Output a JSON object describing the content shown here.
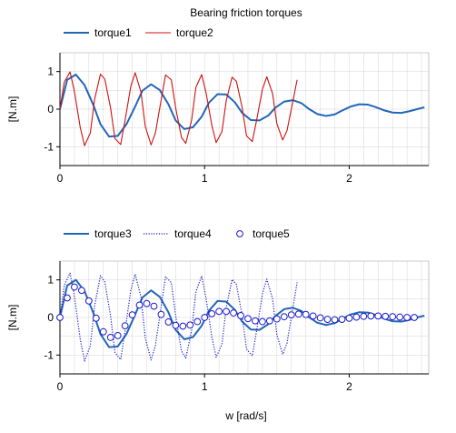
{
  "figure": {
    "title": "Bearing friction torques",
    "xlabel": "w [rad/s]",
    "colors": {
      "series_blue": "#2266b8",
      "series_red": "#cc1111",
      "series_navy": "#1a1acc",
      "grid": "#d4d4d4",
      "axis": "#000000",
      "frame": "#a0a0a0"
    }
  },
  "chart_data": [
    {
      "type": "line",
      "title": "Bearing friction torques",
      "xlabel": "",
      "ylabel": "[N.m]",
      "xlim": [
        0,
        2.55
      ],
      "ylim": [
        -1.5,
        1.5
      ],
      "x_ticks": [
        "0",
        "1",
        "2"
      ],
      "y_ticks": [
        "1",
        "0",
        "-1"
      ],
      "grid": true,
      "legend": "top-left",
      "series": [
        {
          "name": "torque1",
          "style": "solid",
          "color": "#2266b8",
          "x": [
            0.0,
            0.05,
            0.11,
            0.17,
            0.23,
            0.28,
            0.34,
            0.4,
            0.46,
            0.52,
            0.57,
            0.63,
            0.69,
            0.75,
            0.8,
            0.86,
            0.92,
            0.98,
            1.03,
            1.09,
            1.15,
            1.21,
            1.26,
            1.32,
            1.38,
            1.44,
            1.49,
            1.55,
            1.61,
            1.67,
            1.72,
            1.78,
            1.84,
            1.9,
            1.95,
            2.01,
            2.07,
            2.13,
            2.18,
            2.24,
            2.3,
            2.36,
            2.41,
            2.47,
            2.52
          ],
          "y": [
            0.0,
            0.78,
            0.92,
            0.64,
            0.12,
            -0.4,
            -0.73,
            -0.71,
            -0.4,
            0.07,
            0.49,
            0.66,
            0.51,
            0.13,
            -0.3,
            -0.53,
            -0.48,
            -0.2,
            0.17,
            0.4,
            0.39,
            0.18,
            -0.1,
            -0.29,
            -0.3,
            -0.17,
            0.04,
            0.2,
            0.24,
            0.16,
            0.01,
            -0.13,
            -0.18,
            -0.14,
            -0.04,
            0.07,
            0.13,
            0.12,
            0.06,
            -0.03,
            -0.09,
            -0.1,
            -0.06,
            0.0,
            0.05
          ]
        },
        {
          "name": "torque2",
          "style": "solid",
          "color": "#cc1111",
          "x": [
            0.0,
            0.03,
            0.07,
            0.1,
            0.14,
            0.17,
            0.21,
            0.24,
            0.28,
            0.31,
            0.35,
            0.38,
            0.42,
            0.45,
            0.49,
            0.52,
            0.56,
            0.59,
            0.63,
            0.66,
            0.7,
            0.73,
            0.77,
            0.8,
            0.84,
            0.87,
            0.91,
            0.94,
            0.98,
            1.01,
            1.05,
            1.08,
            1.12,
            1.15,
            1.19,
            1.22,
            1.26,
            1.29,
            1.33,
            1.36,
            1.4,
            1.43,
            1.47,
            1.5,
            1.54,
            1.57,
            1.61,
            1.64
          ],
          "y": [
            0.0,
            0.72,
            0.99,
            0.47,
            -0.48,
            -0.97,
            -0.63,
            0.27,
            0.93,
            0.8,
            0.03,
            -0.78,
            -0.94,
            -0.3,
            0.61,
            0.97,
            0.46,
            -0.46,
            -0.95,
            -0.63,
            0.25,
            0.91,
            0.78,
            0.04,
            -0.75,
            -0.91,
            -0.3,
            0.58,
            0.92,
            0.44,
            -0.43,
            -0.89,
            -0.6,
            0.23,
            0.85,
            0.74,
            0.04,
            -0.71,
            -0.86,
            -0.29,
            0.53,
            0.86,
            0.42,
            -0.39,
            -0.82,
            -0.57,
            0.2,
            0.78
          ]
        }
      ]
    },
    {
      "type": "line",
      "title": "",
      "xlabel": "w [rad/s]",
      "ylabel": "[N.m]",
      "xlim": [
        0,
        2.55
      ],
      "ylim": [
        -1.5,
        1.5
      ],
      "x_ticks": [
        "0",
        "1",
        "2"
      ],
      "y_ticks": [
        "1",
        "0",
        "-1"
      ],
      "grid": true,
      "legend": "top-left",
      "series": [
        {
          "name": "torque3",
          "style": "solid",
          "color": "#2266b8",
          "x": [
            0.0,
            0.05,
            0.11,
            0.17,
            0.23,
            0.28,
            0.34,
            0.4,
            0.46,
            0.52,
            0.57,
            0.63,
            0.69,
            0.75,
            0.8,
            0.86,
            0.92,
            0.98,
            1.03,
            1.09,
            1.15,
            1.21,
            1.26,
            1.32,
            1.38,
            1.44,
            1.49,
            1.55,
            1.61,
            1.67,
            1.72,
            1.78,
            1.84,
            1.9,
            1.95,
            2.01,
            2.07,
            2.13,
            2.18,
            2.24,
            2.3,
            2.36,
            2.41,
            2.47,
            2.52
          ],
          "y": [
            0.0,
            0.85,
            1.0,
            0.7,
            0.13,
            -0.44,
            -0.79,
            -0.77,
            -0.44,
            0.08,
            0.53,
            0.72,
            0.55,
            0.14,
            -0.33,
            -0.58,
            -0.52,
            -0.22,
            0.18,
            0.44,
            0.42,
            0.2,
            -0.11,
            -0.32,
            -0.33,
            -0.18,
            0.04,
            0.22,
            0.26,
            0.17,
            0.01,
            -0.14,
            -0.2,
            -0.15,
            -0.04,
            0.08,
            0.14,
            0.13,
            0.07,
            -0.03,
            -0.1,
            -0.11,
            -0.07,
            0.0,
            0.05
          ]
        },
        {
          "name": "torque4",
          "style": "dotted",
          "color": "#1a1acc",
          "x": [
            0.0,
            0.03,
            0.07,
            0.1,
            0.14,
            0.17,
            0.21,
            0.24,
            0.28,
            0.31,
            0.35,
            0.38,
            0.42,
            0.45,
            0.49,
            0.52,
            0.56,
            0.59,
            0.63,
            0.66,
            0.7,
            0.73,
            0.77,
            0.8,
            0.84,
            0.87,
            0.91,
            0.94,
            0.98,
            1.01,
            1.05,
            1.08,
            1.12,
            1.15,
            1.19,
            1.22,
            1.26,
            1.29,
            1.33,
            1.36,
            1.4,
            1.43,
            1.47,
            1.5,
            1.54,
            1.57,
            1.61,
            1.64
          ],
          "y": [
            0.0,
            0.86,
            1.18,
            0.56,
            -0.57,
            -1.16,
            -0.75,
            0.32,
            1.11,
            0.95,
            0.04,
            -0.93,
            -1.12,
            -0.36,
            0.73,
            1.15,
            0.55,
            -0.55,
            -1.13,
            -0.75,
            0.3,
            1.08,
            0.93,
            0.05,
            -0.89,
            -1.08,
            -0.36,
            0.69,
            1.1,
            0.52,
            -0.51,
            -1.06,
            -0.71,
            0.27,
            1.01,
            0.88,
            0.05,
            -0.84,
            -1.02,
            -0.35,
            0.63,
            1.02,
            0.5,
            -0.46,
            -0.98,
            -0.68,
            0.24,
            0.93
          ]
        },
        {
          "name": "torque5",
          "style": "markers",
          "color": "#1a1acc",
          "x": [
            0.0,
            0.05,
            0.1,
            0.15,
            0.2,
            0.25,
            0.3,
            0.35,
            0.4,
            0.45,
            0.5,
            0.55,
            0.6,
            0.65,
            0.7,
            0.75,
            0.8,
            0.85,
            0.9,
            0.95,
            1.0,
            1.05,
            1.1,
            1.15,
            1.2,
            1.25,
            1.3,
            1.35,
            1.4,
            1.45,
            1.5,
            1.55,
            1.6,
            1.65,
            1.7,
            1.75,
            1.8,
            1.85,
            1.9,
            1.95,
            2.0,
            2.05,
            2.1,
            2.15,
            2.2,
            2.25,
            2.3,
            2.35,
            2.4,
            2.45
          ],
          "y": [
            0.0,
            0.52,
            0.81,
            0.72,
            0.44,
            -0.02,
            -0.38,
            -0.53,
            -0.48,
            -0.22,
            0.07,
            0.33,
            0.37,
            0.3,
            0.08,
            -0.12,
            -0.21,
            -0.23,
            -0.2,
            -0.11,
            0.0,
            0.1,
            0.16,
            0.16,
            0.12,
            0.05,
            -0.03,
            -0.09,
            -0.11,
            -0.09,
            -0.04,
            0.02,
            0.07,
            0.09,
            0.08,
            0.04,
            -0.01,
            -0.05,
            -0.06,
            -0.05,
            -0.02,
            0.01,
            0.03,
            0.04,
            0.04,
            0.03,
            0.02,
            0.01,
            0.0,
            0.0
          ]
        }
      ]
    }
  ]
}
